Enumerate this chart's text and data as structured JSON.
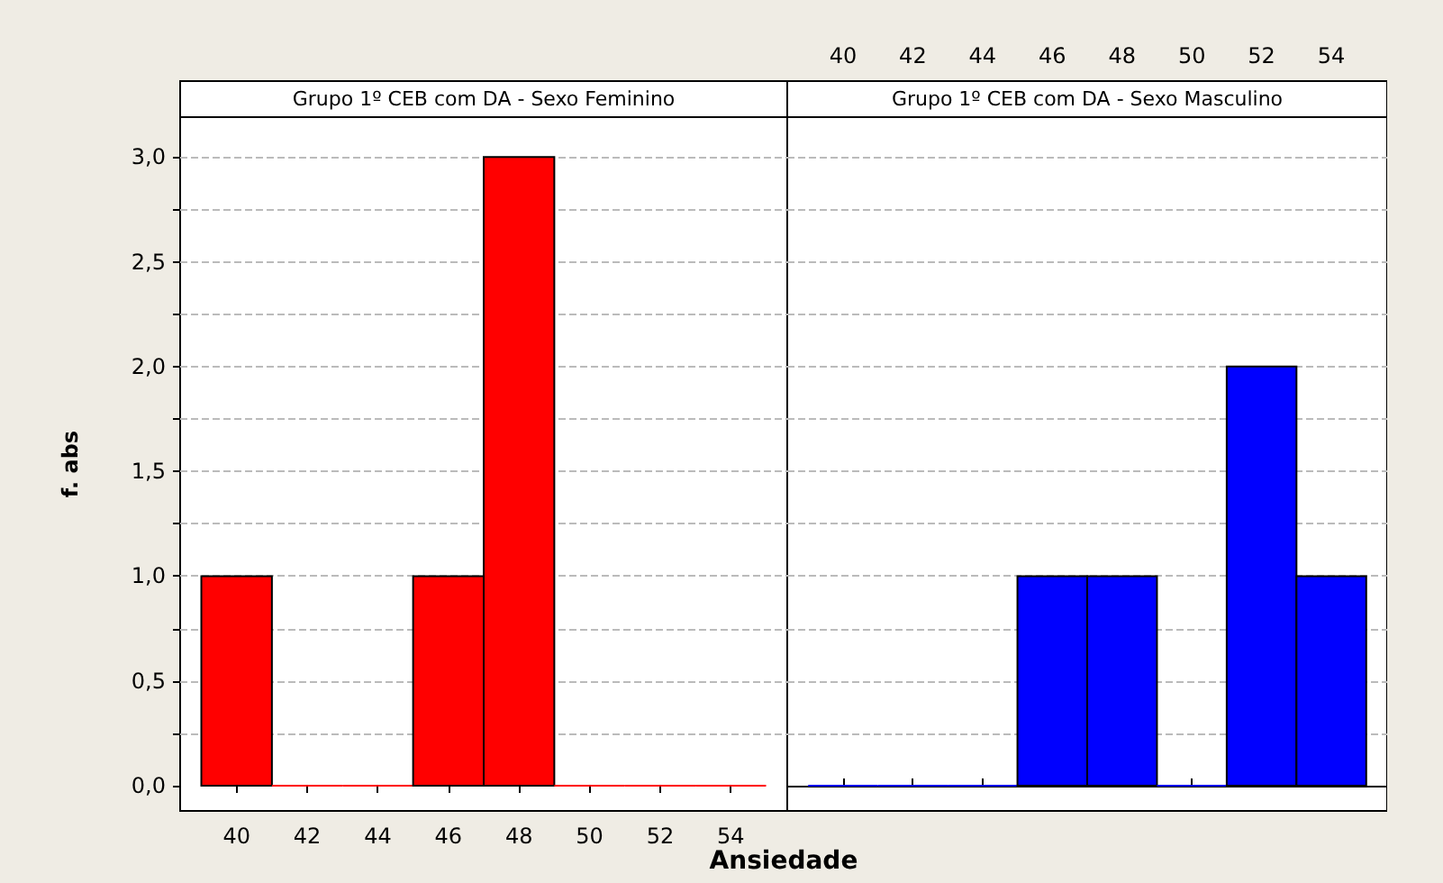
{
  "chart_data": [
    {
      "type": "histogram",
      "title": "Grupo 1º CEB com DA - Sexo Feminino",
      "xlabel": "Ansiedade",
      "ylabel": "f. abs",
      "bins": [
        39,
        41,
        43,
        45,
        47,
        49,
        51,
        53,
        55
      ],
      "values": [
        1,
        0,
        0,
        1,
        3,
        0,
        0,
        0
      ],
      "color": "#ff0000",
      "xlim": [
        38.4,
        55.6
      ],
      "xticks": [
        40,
        42,
        44,
        46,
        48,
        50,
        52,
        54
      ],
      "ylim": [
        -0.12,
        3.19
      ],
      "yticks": [
        {
          "value": 0,
          "label": "0,0"
        },
        {
          "value": 0.25,
          "label": null
        },
        {
          "value": 0.5,
          "label": "0,5"
        },
        {
          "value": 0.75,
          "label": null
        },
        {
          "value": 1,
          "label": "1,0"
        },
        {
          "value": 1.25,
          "label": null
        },
        {
          "value": 1.5,
          "label": "1,5"
        },
        {
          "value": 1.75,
          "label": null
        },
        {
          "value": 2,
          "label": "2,0"
        },
        {
          "value": 2.25,
          "label": null
        },
        {
          "value": 2.5,
          "label": "2,5"
        },
        {
          "value": 2.75,
          "label": null
        },
        {
          "value": 3,
          "label": "3,0"
        }
      ],
      "grid": "y"
    },
    {
      "type": "histogram",
      "title": "Grupo 1º CEB com DA - Sexo Masculino",
      "bins": [
        39,
        41,
        43,
        45,
        47,
        49,
        51,
        53,
        55
      ],
      "values": [
        0,
        0,
        0,
        1,
        1,
        0,
        2,
        1
      ],
      "color": "#0000ff",
      "xlim": [
        38.4,
        55.6
      ],
      "xticks": [
        40,
        42,
        44,
        46,
        48,
        50,
        52,
        54
      ],
      "ylim": [
        -0.12,
        3.19
      ],
      "yticks": [
        0,
        0.25,
        0.5,
        0.75,
        1,
        1.25,
        1.5,
        1.75,
        2,
        2.25,
        2.5,
        2.75,
        3
      ],
      "grid": "y",
      "tick_labels": "x"
    }
  ]
}
